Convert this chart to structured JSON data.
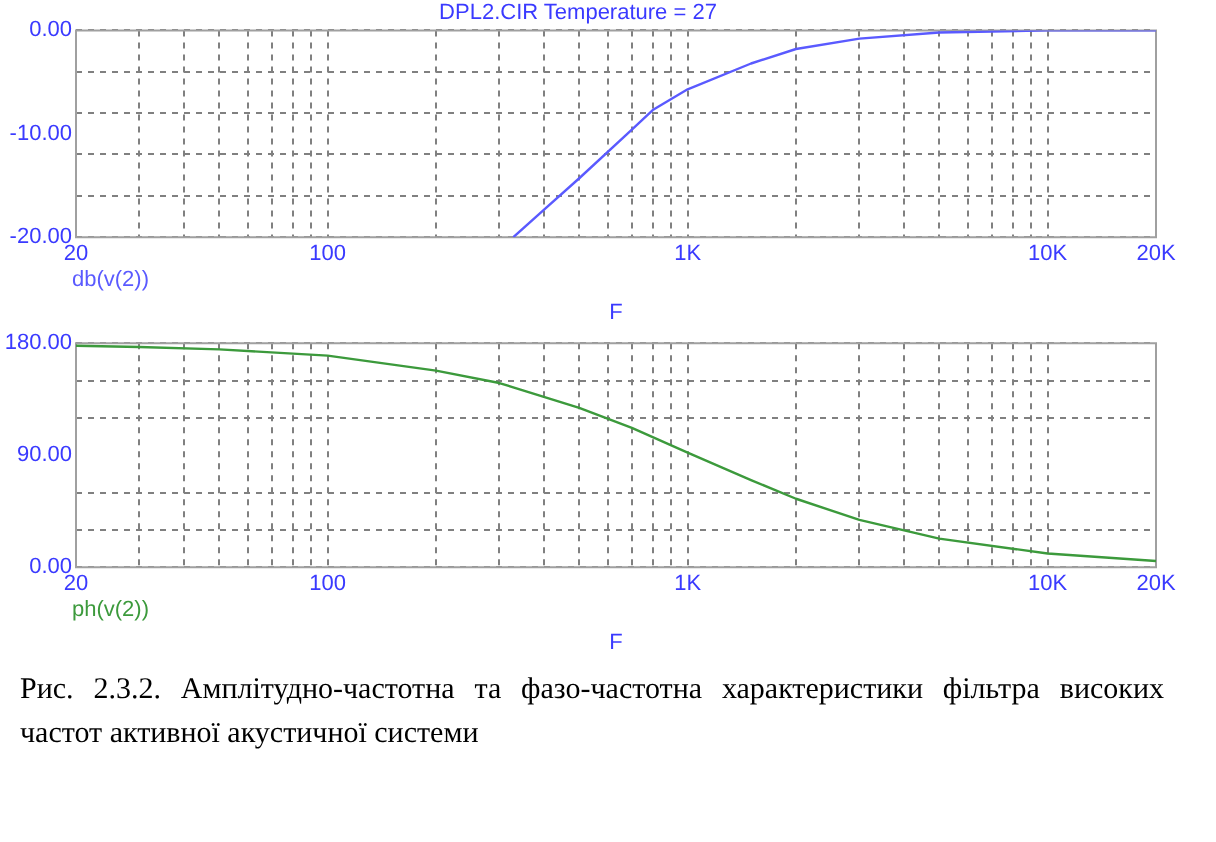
{
  "chart_data": [
    {
      "type": "line",
      "title": "DPL2.CIR Temperature = 27",
      "xlabel": "F",
      "log": "x",
      "grid": true,
      "legend": "bottom left",
      "marker": "none",
      "line_style": "solid",
      "xlim": [
        20,
        20000
      ],
      "xticks": [
        {
          "value": 20,
          "label": "20"
        },
        {
          "value": 30,
          "label": null
        },
        {
          "value": 40,
          "label": null
        },
        {
          "value": 50,
          "label": null
        },
        {
          "value": 60,
          "label": null
        },
        {
          "value": 70,
          "label": null
        },
        {
          "value": 80,
          "label": null
        },
        {
          "value": 90,
          "label": null
        },
        {
          "value": 100,
          "label": "100"
        },
        {
          "value": 200,
          "label": null
        },
        {
          "value": 300,
          "label": null
        },
        {
          "value": 400,
          "label": null
        },
        {
          "value": 500,
          "label": null
        },
        {
          "value": 600,
          "label": null
        },
        {
          "value": 700,
          "label": null
        },
        {
          "value": 800,
          "label": null
        },
        {
          "value": 900,
          "label": null
        },
        {
          "value": 1000,
          "label": "1K"
        },
        {
          "value": 2000,
          "label": null
        },
        {
          "value": 3000,
          "label": null
        },
        {
          "value": 4000,
          "label": null
        },
        {
          "value": 5000,
          "label": null
        },
        {
          "value": 6000,
          "label": null
        },
        {
          "value": 7000,
          "label": null
        },
        {
          "value": 8000,
          "label": null
        },
        {
          "value": 9000,
          "label": null
        },
        {
          "value": 10000,
          "label": "10K"
        },
        {
          "value": 20000,
          "label": "20K"
        }
      ],
      "ylim": [
        -20,
        0
      ],
      "yticks": [
        {
          "value": 0,
          "label": "0.00"
        },
        {
          "value": -4,
          "label": null
        },
        {
          "value": -8,
          "label": null
        },
        {
          "value": -10,
          "label": "-10.00"
        },
        {
          "value": -12,
          "label": null
        },
        {
          "value": -16,
          "label": null
        },
        {
          "value": -20,
          "label": "-20.00"
        }
      ],
      "series": [
        {
          "name": "db(v(2))",
          "color": "#5a5aff",
          "x": [
            328,
            400,
            500,
            700,
            800,
            1000,
            1500,
            2000,
            3000,
            5000,
            10000,
            20000
          ],
          "values": [
            -20,
            -17.3,
            -14.3,
            -9.6,
            -7.7,
            -5.7,
            -3.2,
            -1.8,
            -0.8,
            -0.2,
            0,
            0
          ]
        }
      ]
    },
    {
      "type": "line",
      "xlabel": "F",
      "log": "x",
      "grid": true,
      "legend": "bottom left",
      "marker": "none",
      "line_style": "solid",
      "xlim": [
        20,
        20000
      ],
      "xticks": [
        {
          "value": 20,
          "label": "20"
        },
        {
          "value": 30,
          "label": null
        },
        {
          "value": 40,
          "label": null
        },
        {
          "value": 50,
          "label": null
        },
        {
          "value": 60,
          "label": null
        },
        {
          "value": 70,
          "label": null
        },
        {
          "value": 80,
          "label": null
        },
        {
          "value": 90,
          "label": null
        },
        {
          "value": 100,
          "label": "100"
        },
        {
          "value": 200,
          "label": null
        },
        {
          "value": 300,
          "label": null
        },
        {
          "value": 400,
          "label": null
        },
        {
          "value": 500,
          "label": null
        },
        {
          "value": 600,
          "label": null
        },
        {
          "value": 700,
          "label": null
        },
        {
          "value": 800,
          "label": null
        },
        {
          "value": 900,
          "label": null
        },
        {
          "value": 1000,
          "label": "1K"
        },
        {
          "value": 2000,
          "label": null
        },
        {
          "value": 3000,
          "label": null
        },
        {
          "value": 4000,
          "label": null
        },
        {
          "value": 5000,
          "label": null
        },
        {
          "value": 6000,
          "label": null
        },
        {
          "value": 7000,
          "label": null
        },
        {
          "value": 8000,
          "label": null
        },
        {
          "value": 9000,
          "label": null
        },
        {
          "value": 10000,
          "label": "10K"
        },
        {
          "value": 20000,
          "label": "20K"
        }
      ],
      "ylim": [
        0,
        180
      ],
      "yticks": [
        {
          "value": 0,
          "label": "0.00"
        },
        {
          "value": 30,
          "label": null
        },
        {
          "value": 60,
          "label": null
        },
        {
          "value": 90,
          "label": "90.00"
        },
        {
          "value": 120,
          "label": null
        },
        {
          "value": 150,
          "label": null
        },
        {
          "value": 180,
          "label": "180.00"
        }
      ],
      "series": [
        {
          "name": "ph(v(2))",
          "color": "#3c9a3c",
          "x": [
            20,
            30,
            50,
            100,
            200,
            300,
            500,
            700,
            1000,
            1500,
            2000,
            3000,
            5000,
            10000,
            20000
          ],
          "values": [
            178,
            177,
            175,
            170,
            158,
            148,
            128,
            112,
            92,
            70,
            55,
            38,
            23,
            11,
            5
          ]
        }
      ],
      "annotations": [
        "Рис.  2.3.2.  Амплітудно-частотна  та  фазо-частотна  характеристики  фільтра високих частот активної акустичної системи"
      ]
    }
  ]
}
